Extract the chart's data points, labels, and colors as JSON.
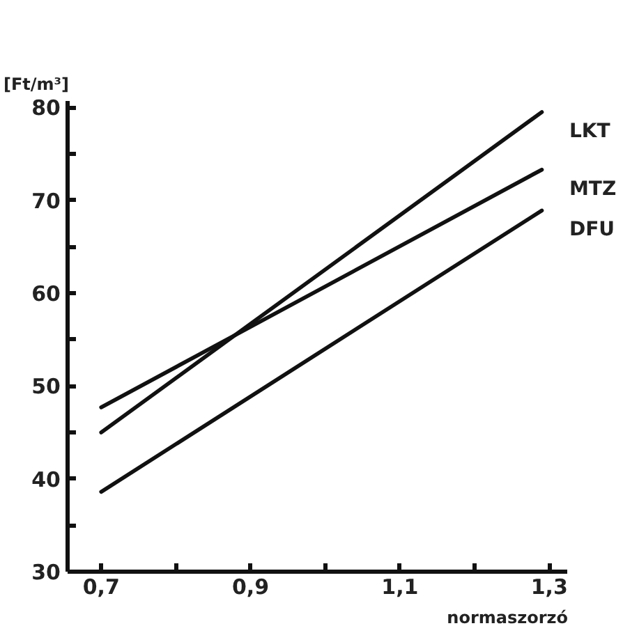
{
  "chart_data": {
    "type": "line",
    "xlabel": "normaszorzó",
    "ylabel": "[Ft/m³]",
    "x": [
      0.7,
      1.29
    ],
    "series": [
      {
        "name": "LKT",
        "color": "#111111",
        "values": [
          45,
          79.5
        ]
      },
      {
        "name": "MTZ",
        "color": "#111111",
        "values": [
          47.7,
          73.3
        ]
      },
      {
        "name": "DFU",
        "color": "#111111",
        "values": [
          38.6,
          68.9
        ]
      }
    ],
    "xlim": [
      0.655,
      1.325
    ],
    "ylim": [
      30,
      80.7
    ],
    "xticks": [
      {
        "value": 0.7,
        "label": "0,7"
      },
      {
        "value": 0.8,
        "label": null
      },
      {
        "value": 0.9,
        "label": "0,9"
      },
      {
        "value": 1.0,
        "label": null
      },
      {
        "value": 1.1,
        "label": "1,1"
      },
      {
        "value": 1.2,
        "label": null
      },
      {
        "value": 1.3,
        "label": "1,3"
      }
    ],
    "yticks": [
      30,
      {
        "value": 35,
        "label": null
      },
      40,
      {
        "value": 45,
        "label": null
      },
      50,
      {
        "value": 55,
        "label": null
      },
      60,
      {
        "value": 65,
        "label": null
      },
      70,
      {
        "value": 75,
        "label": null
      },
      80
    ],
    "grid": false
  }
}
